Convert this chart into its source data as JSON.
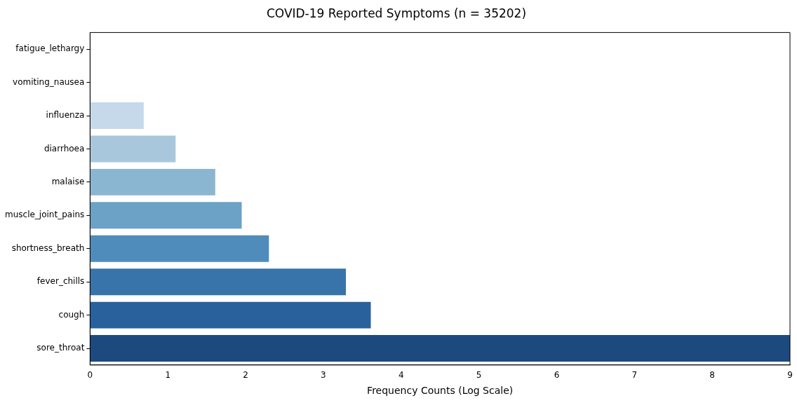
{
  "chart_data": {
    "type": "bar",
    "orientation": "horizontal",
    "title": "COVID-19 Reported Symptoms (n = 35202)",
    "xlabel": "Frequency Counts (Log Scale)",
    "categories": [
      "fatigue_lethargy",
      "vomiting_nausea",
      "influenza",
      "diarrhoea",
      "malaise",
      "muscle_joint_pains",
      "shortness_breath",
      "fever_chills",
      "cough",
      "sore_throat"
    ],
    "values": [
      0,
      0,
      0.69,
      1.1,
      1.61,
      1.95,
      2.3,
      3.29,
      3.61,
      9
    ],
    "colors": [
      "#e3eef8",
      "#d6e5f3",
      "#c5d9eb",
      "#a9c7dc",
      "#8bb6d1",
      "#6ba2c6",
      "#4f8cbc",
      "#3874a9",
      "#28619b",
      "#1c4a7f"
    ],
    "xlim": [
      0,
      9
    ],
    "xticks": [
      0,
      1,
      2,
      3,
      4,
      5,
      6,
      7,
      8,
      9
    ],
    "grid": false,
    "legend": false
  }
}
